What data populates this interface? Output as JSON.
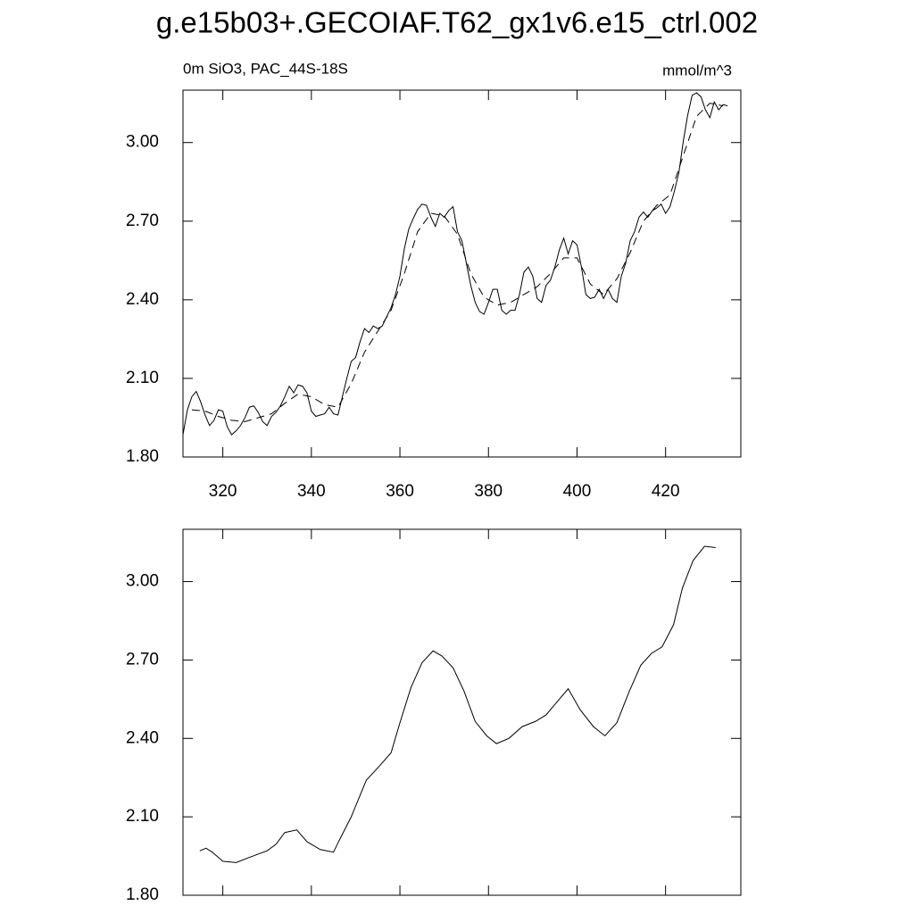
{
  "chart_data": [
    {
      "type": "line",
      "title": "g.e15b03+.GECOIAF.T62_gx1v6.e15_ctrl.002",
      "subtitle_left": "0m SiO3, PAC_44S-18S",
      "subtitle_right": "mmol/m^3",
      "xlim": [
        311,
        437
      ],
      "ylim": [
        1.8,
        3.2
      ],
      "xticks": [
        320,
        340,
        360,
        380,
        400,
        420
      ],
      "yticks": [
        {
          "value": 1.8,
          "label": "1.80"
        },
        {
          "value": 2.1,
          "label": "2.10"
        },
        {
          "value": 2.4,
          "label": "2.40"
        },
        {
          "value": 2.7,
          "label": "2.70"
        },
        {
          "value": 3.0,
          "label": "3.00"
        }
      ],
      "show_xtick_labels": true,
      "series": [
        {
          "color": "#000000",
          "dash": false,
          "x": [
            311,
            312,
            313,
            314,
            315,
            316,
            317,
            318,
            319,
            320,
            321,
            322,
            323,
            324,
            325,
            326,
            327,
            328,
            329,
            330,
            331,
            332,
            333,
            334,
            335,
            336,
            337,
            338,
            339,
            340,
            341,
            342,
            343,
            344,
            345,
            346,
            347,
            348,
            349,
            350,
            351,
            352,
            353,
            354,
            355,
            356,
            357,
            358,
            359,
            360,
            361,
            362,
            363,
            364,
            365,
            366,
            367,
            368,
            369,
            370,
            371,
            372,
            373,
            374,
            375,
            376,
            377,
            378,
            379,
            380,
            381,
            382,
            383,
            384,
            385,
            386,
            387,
            388,
            389,
            390,
            391,
            392,
            393,
            394,
            395,
            396,
            397,
            398,
            399,
            400,
            401,
            402,
            403,
            404,
            405,
            406,
            407,
            408,
            409,
            410,
            411,
            412,
            413,
            414,
            415,
            416,
            417,
            418,
            419,
            420,
            421,
            422,
            423,
            424,
            425,
            426,
            427,
            428,
            429,
            430,
            431,
            432,
            433,
            434
          ],
          "values": [
            1.885,
            1.98,
            2.03,
            2.05,
            2.01,
            1.96,
            1.92,
            1.94,
            1.98,
            1.975,
            1.915,
            1.885,
            1.9,
            1.92,
            1.95,
            1.99,
            1.995,
            1.97,
            1.935,
            1.92,
            1.955,
            1.97,
            1.995,
            2.03,
            2.07,
            2.045,
            2.075,
            2.07,
            2.045,
            1.975,
            1.955,
            1.96,
            1.965,
            1.99,
            1.965,
            1.96,
            2.03,
            2.1,
            2.165,
            2.18,
            2.24,
            2.29,
            2.275,
            2.3,
            2.29,
            2.3,
            2.335,
            2.37,
            2.42,
            2.49,
            2.595,
            2.67,
            2.71,
            2.745,
            2.765,
            2.76,
            2.715,
            2.68,
            2.73,
            2.715,
            2.74,
            2.755,
            2.66,
            2.625,
            2.54,
            2.455,
            2.39,
            2.355,
            2.345,
            2.39,
            2.44,
            2.44,
            2.36,
            2.345,
            2.36,
            2.36,
            2.42,
            2.505,
            2.525,
            2.49,
            2.405,
            2.39,
            2.455,
            2.475,
            2.525,
            2.59,
            2.635,
            2.575,
            2.625,
            2.61,
            2.525,
            2.42,
            2.405,
            2.41,
            2.44,
            2.405,
            2.44,
            2.405,
            2.39,
            2.49,
            2.54,
            2.625,
            2.66,
            2.715,
            2.735,
            2.715,
            2.74,
            2.75,
            2.765,
            2.73,
            2.755,
            2.815,
            2.885,
            3.005,
            3.105,
            3.18,
            3.19,
            3.175,
            3.125,
            3.095,
            3.155,
            3.125,
            3.145,
            3.14
          ]
        },
        {
          "color": "#000000",
          "dash": true,
          "x": [
            313,
            316,
            319,
            322,
            325,
            328,
            331,
            334,
            337,
            340,
            343,
            346,
            349,
            352,
            355,
            358,
            361,
            364,
            367,
            370,
            373,
            376,
            379,
            382,
            385,
            388,
            391,
            394,
            397,
            400,
            403,
            406,
            409,
            412,
            415,
            418,
            421,
            424,
            427,
            430,
            433
          ],
          "values": [
            1.98,
            1.975,
            1.955,
            1.94,
            1.935,
            1.95,
            1.965,
            2.005,
            2.04,
            2.03,
            2.0,
            1.99,
            2.08,
            2.2,
            2.28,
            2.36,
            2.5,
            2.66,
            2.73,
            2.72,
            2.65,
            2.5,
            2.41,
            2.38,
            2.39,
            2.42,
            2.45,
            2.5,
            2.56,
            2.56,
            2.46,
            2.42,
            2.48,
            2.58,
            2.7,
            2.76,
            2.8,
            2.95,
            3.1,
            3.15,
            3.14
          ]
        }
      ]
    },
    {
      "type": "line",
      "xlim": [
        311,
        437
      ],
      "ylim": [
        1.8,
        3.2
      ],
      "xticks": [
        320,
        340,
        360,
        380,
        400,
        420
      ],
      "yticks": [
        {
          "value": 1.8,
          "label": "1.80"
        },
        {
          "value": 2.1,
          "label": "2.10"
        },
        {
          "value": 2.4,
          "label": "2.40"
        },
        {
          "value": 2.7,
          "label": "2.70"
        },
        {
          "value": 3.0,
          "label": "3.00"
        }
      ],
      "show_xtick_labels": false,
      "series": [
        {
          "color": "#000000",
          "dash": false,
          "x": [
            314.8,
            316.2,
            317.6,
            320,
            323,
            326,
            330,
            332,
            334,
            336.7,
            339,
            342,
            345,
            346,
            349,
            352.4,
            355.4,
            358,
            360,
            362.5,
            365,
            367.5,
            369.5,
            372,
            374.5,
            377,
            379.6,
            381.8,
            384.6,
            387.6,
            390.6,
            393,
            395,
            398,
            400.7,
            403.7,
            406.3,
            409,
            411.8,
            414.4,
            416.8,
            419.2,
            421.8,
            423.8,
            426.2,
            428.8,
            431.3
          ],
          "values": [
            1.97,
            1.98,
            1.965,
            1.93,
            1.925,
            1.945,
            1.97,
            1.995,
            2.04,
            2.05,
            2.005,
            1.975,
            1.965,
            2.0,
            2.1,
            2.24,
            2.295,
            2.345,
            2.46,
            2.595,
            2.69,
            2.735,
            2.715,
            2.67,
            2.58,
            2.465,
            2.41,
            2.38,
            2.4,
            2.445,
            2.465,
            2.49,
            2.53,
            2.59,
            2.51,
            2.445,
            2.41,
            2.46,
            2.58,
            2.68,
            2.725,
            2.75,
            2.835,
            2.975,
            3.08,
            3.135,
            3.13
          ]
        }
      ]
    }
  ]
}
